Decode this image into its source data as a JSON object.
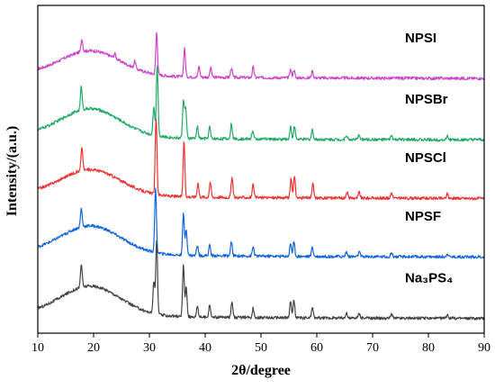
{
  "chart_data": {
    "type": "line",
    "xlabel": "2θ/degree",
    "ylabel": "Intensity/(a.u.)",
    "xlim": [
      10,
      90
    ],
    "x_ticks": [
      10,
      20,
      30,
      40,
      50,
      60,
      70,
      80,
      90
    ],
    "y_ticks_labeled": false,
    "grid": false,
    "series": [
      {
        "name": "NPSI",
        "color": "#cc44cc",
        "baseline": 4.1,
        "hump_height": 0.42,
        "peaks": [
          [
            17.9,
            0.22
          ],
          [
            23.8,
            0.08
          ],
          [
            27.4,
            0.12
          ],
          [
            31.3,
            0.72
          ],
          [
            36.3,
            0.48
          ],
          [
            38.9,
            0.18
          ],
          [
            41.0,
            0.16
          ],
          [
            44.7,
            0.16
          ],
          [
            48.6,
            0.18
          ],
          [
            55.3,
            0.14
          ],
          [
            55.9,
            0.14
          ],
          [
            59.2,
            0.12
          ]
        ]
      },
      {
        "name": "NPSBr",
        "color": "#22aa66",
        "baseline": 3.05,
        "hump_height": 0.48,
        "peaks": [
          [
            17.8,
            0.4
          ],
          [
            30.8,
            0.5
          ],
          [
            31.4,
            1.22
          ],
          [
            36.1,
            0.65
          ],
          [
            36.5,
            0.5
          ],
          [
            38.6,
            0.2
          ],
          [
            40.8,
            0.2
          ],
          [
            44.7,
            0.26
          ],
          [
            48.5,
            0.14
          ],
          [
            55.3,
            0.22
          ],
          [
            56.0,
            0.22
          ],
          [
            59.2,
            0.16
          ],
          [
            65.3,
            0.08
          ],
          [
            67.6,
            0.08
          ],
          [
            73.4,
            0.07
          ],
          [
            83.4,
            0.06
          ]
        ]
      },
      {
        "name": "NPSCl",
        "color": "#ee3333",
        "baseline": 2.05,
        "hump_height": 0.44,
        "peaks": [
          [
            17.9,
            0.4
          ],
          [
            31.2,
            1.3
          ],
          [
            36.2,
            0.95
          ],
          [
            38.7,
            0.24
          ],
          [
            40.9,
            0.26
          ],
          [
            44.8,
            0.34
          ],
          [
            48.6,
            0.22
          ],
          [
            55.4,
            0.32
          ],
          [
            56.0,
            0.36
          ],
          [
            59.3,
            0.24
          ],
          [
            65.4,
            0.12
          ],
          [
            67.6,
            0.1
          ],
          [
            73.4,
            0.1
          ],
          [
            83.4,
            0.08
          ]
        ]
      },
      {
        "name": "NPSF",
        "color": "#1166dd",
        "baseline": 1.05,
        "hump_height": 0.48,
        "peaks": [
          [
            17.8,
            0.32
          ],
          [
            31.1,
            1.1
          ],
          [
            36.1,
            0.7
          ],
          [
            36.6,
            0.45
          ],
          [
            38.6,
            0.18
          ],
          [
            40.8,
            0.18
          ],
          [
            44.7,
            0.24
          ],
          [
            48.6,
            0.16
          ],
          [
            55.3,
            0.22
          ],
          [
            55.9,
            0.24
          ],
          [
            59.2,
            0.16
          ],
          [
            65.3,
            0.08
          ],
          [
            67.6,
            0.08
          ],
          [
            73.4,
            0.07
          ],
          [
            83.4,
            0.06
          ]
        ]
      },
      {
        "name": "Na₃PS₄",
        "color": "#444444",
        "baseline": 0.0,
        "hump_height": 0.5,
        "peaks": [
          [
            17.8,
            0.4
          ],
          [
            30.8,
            0.55
          ],
          [
            31.3,
            1.28
          ],
          [
            36.1,
            0.88
          ],
          [
            36.6,
            0.5
          ],
          [
            38.6,
            0.2
          ],
          [
            40.8,
            0.22
          ],
          [
            44.8,
            0.28
          ],
          [
            48.6,
            0.16
          ],
          [
            55.3,
            0.28
          ],
          [
            55.9,
            0.3
          ],
          [
            59.2,
            0.18
          ],
          [
            65.3,
            0.1
          ],
          [
            67.6,
            0.08
          ],
          [
            73.4,
            0.08
          ],
          [
            83.4,
            0.07
          ]
        ]
      }
    ]
  }
}
